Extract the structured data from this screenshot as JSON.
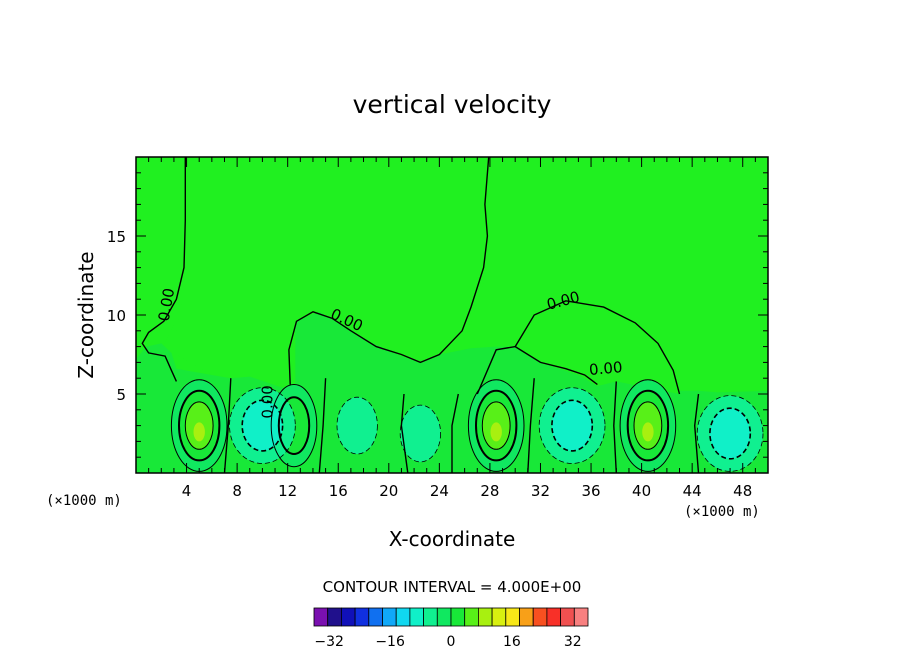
{
  "chart_data": {
    "type": "contour",
    "title": "vertical velocity",
    "xlabel": "X-coordinate",
    "ylabel": "Z-coordinate",
    "x_unit_left": "(×1000 m)",
    "x_unit_right": "(×1000 m)",
    "xlim": [
      0,
      50
    ],
    "ylim": [
      0,
      20
    ],
    "x_ticks": [
      "4",
      "8",
      "12",
      "16",
      "20",
      "24",
      "28",
      "32",
      "36",
      "40",
      "44",
      "48"
    ],
    "x_tick_values": [
      4,
      8,
      12,
      16,
      20,
      24,
      28,
      32,
      36,
      40,
      44,
      48
    ],
    "y_ticks": [
      "5",
      "10",
      "15"
    ],
    "y_tick_values": [
      5,
      10,
      15
    ],
    "contour_labels": [
      "0.00",
      "0.00",
      "0.00",
      "0.00",
      "0.00"
    ],
    "contour_interval_text": "CONTOUR INTERVAL = 4.000E+00",
    "colorbar": {
      "min": -36,
      "max": 36,
      "step": 4,
      "tick_labels": [
        "−32",
        "−16",
        "0",
        "16",
        "32"
      ],
      "tick_values": [
        -32,
        -16,
        0,
        16,
        32
      ],
      "colors": [
        "#7a10b0",
        "#20108c",
        "#1010b8",
        "#1030e0",
        "#1070f0",
        "#10a8f8",
        "#10d8f0",
        "#10f0c8",
        "#10f090",
        "#10e860",
        "#18e838",
        "#58f018",
        "#a8f010",
        "#d8f010",
        "#f8e818",
        "#f8a018",
        "#f85020",
        "#f83028",
        "#f05050",
        "#f88080"
      ]
    },
    "background_color": "#20f020",
    "features": [
      {
        "kind": "updraft",
        "x": 5,
        "z": 3,
        "max": 12
      },
      {
        "kind": "updraft",
        "x": 12.5,
        "z": 3,
        "max": 8
      },
      {
        "kind": "updraft",
        "x": 28.5,
        "z": 3,
        "max": 12
      },
      {
        "kind": "updraft",
        "x": 40.5,
        "z": 3,
        "max": 12
      },
      {
        "kind": "downdraft",
        "x": 10,
        "z": 3,
        "min": -8
      },
      {
        "kind": "downdraft",
        "x": 17.5,
        "z": 3,
        "min": -4
      },
      {
        "kind": "downdraft",
        "x": 22.5,
        "z": 2.5,
        "min": -4
      },
      {
        "kind": "downdraft",
        "x": 34.5,
        "z": 3,
        "min": -8
      },
      {
        "kind": "downdraft",
        "x": 47,
        "z": 2.5,
        "min": -8
      }
    ]
  }
}
